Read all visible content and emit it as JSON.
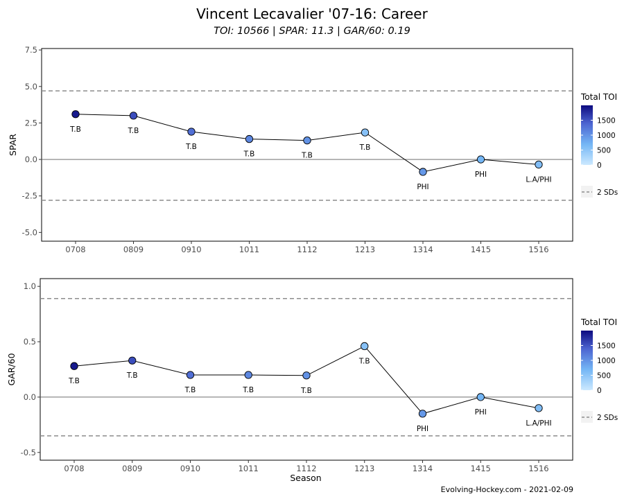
{
  "title": "Vincent Lecavalier '07-16: Career",
  "subtitle": "TOI: 10566 | SPAR: 11.3 | GAR/60: 0.19",
  "footer": "Evolving-Hockey.com - 2021-02-09",
  "colors": {
    "line": "#000000",
    "dashed": "#8c8c8c",
    "zero_line": "#5a5a5a",
    "toi_low": "#cce9ff",
    "toi_mid": "#74b6f5",
    "toi_high": "#0d0b80"
  },
  "chart_data": [
    {
      "type": "line",
      "ylabel": "SPAR",
      "xlabel": "",
      "categories": [
        "0708",
        "0809",
        "0910",
        "1011",
        "1112",
        "1213",
        "1314",
        "1415",
        "1516"
      ],
      "values": [
        3.1,
        3.0,
        1.9,
        1.4,
        1.3,
        1.85,
        -0.85,
        0.0,
        -0.35
      ],
      "teams": [
        "T.B",
        "T.B",
        "T.B",
        "T.B",
        "T.B",
        "T.B",
        "PHI",
        "PHI",
        "L.A/PHI"
      ],
      "toi": [
        1900,
        1550,
        1300,
        1100,
        1000,
        550,
        950,
        700,
        600
      ],
      "ylim": [
        -5.6,
        7.6
      ],
      "yticks": [
        -5.0,
        -2.5,
        0.0,
        2.5,
        5.0,
        7.5
      ],
      "ytick_labels": [
        "-5.0",
        "-2.5",
        "0.0",
        "2.5",
        "5.0",
        "7.5"
      ],
      "sd_band": [
        -2.8,
        4.7
      ],
      "legend": {
        "title": "Total TOI",
        "ticks": [
          0,
          500,
          1000,
          1500
        ],
        "tick_labels": [
          "0",
          "500",
          "1000",
          "1500"
        ],
        "max": 2000,
        "sd_label": "2 SDs"
      }
    },
    {
      "type": "line",
      "ylabel": "GAR/60",
      "xlabel": "Season",
      "categories": [
        "0708",
        "0809",
        "0910",
        "1011",
        "1112",
        "1213",
        "1314",
        "1415",
        "1516"
      ],
      "values": [
        0.28,
        0.33,
        0.2,
        0.2,
        0.195,
        0.46,
        -0.15,
        0.0,
        -0.1
      ],
      "teams": [
        "T.B",
        "T.B",
        "T.B",
        "T.B",
        "T.B",
        "T.B",
        "PHI",
        "PHI",
        "L.A/PHI"
      ],
      "toi": [
        1900,
        1550,
        1300,
        1100,
        1000,
        550,
        950,
        700,
        600
      ],
      "ylim": [
        -0.57,
        1.07
      ],
      "yticks": [
        -0.5,
        0.0,
        0.5,
        1.0
      ],
      "ytick_labels": [
        "-0.5",
        "0.0",
        "0.5",
        "1.0"
      ],
      "sd_band": [
        -0.35,
        0.89
      ],
      "legend": {
        "title": "Total TOI",
        "ticks": [
          0,
          500,
          1000,
          1500
        ],
        "tick_labels": [
          "0",
          "500",
          "1000",
          "1500"
        ],
        "max": 2000,
        "sd_label": "2 SDs"
      }
    }
  ]
}
